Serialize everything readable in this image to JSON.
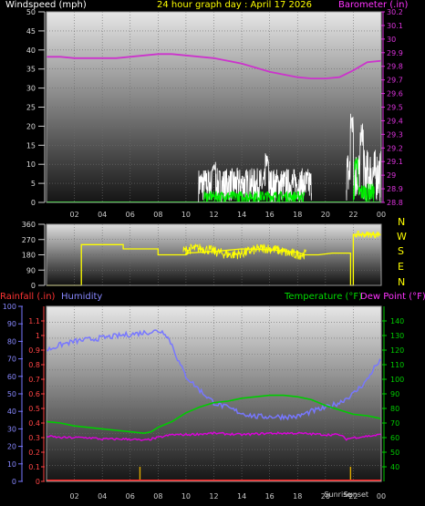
{
  "header": {
    "left": "Windspeed (mph)",
    "center": "24 hour graph day : April 17 2026",
    "right": "Barometer (.in)"
  },
  "compass": [
    "N",
    "W",
    "S",
    "E",
    "N"
  ],
  "bottom_header": {
    "rainfall": "Rainfall (.in)",
    "humidity": "Humidity",
    "temperature": "Temperature (°F)",
    "dewpoint": "Dew Point (°F)"
  },
  "x_ticks": [
    "02",
    "04",
    "06",
    "08",
    "10",
    "12",
    "14",
    "16",
    "18",
    "20",
    "22",
    "00"
  ],
  "sun_labels": [
    "Sunrise",
    "Sunset"
  ],
  "colors": {
    "wind": "#ffffff",
    "gust": "#00ee00",
    "barometer": "#cc33cc",
    "direction": "#ffff00",
    "humidity": "#7777ff",
    "temperature": "#00cc00",
    "dewpoint": "#dd00dd",
    "rain": "#ff2222",
    "sun": "#ddaa00",
    "header_left": "#ffffff",
    "header_center": "#ffff00",
    "header_right": "#ff33ff"
  },
  "chart_data": [
    {
      "type": "line",
      "name": "wind-barometer",
      "x_range": [
        0,
        24
      ],
      "ylim_left": [
        0,
        50
      ],
      "yticks_left": [
        0,
        5,
        10,
        15,
        20,
        25,
        30,
        35,
        40,
        45,
        50
      ],
      "ylim_right": [
        28.8,
        30.2
      ],
      "yticks_right": [
        "28.8",
        "28.9",
        "29",
        "29.1",
        "29.2",
        "29.3",
        "29.4",
        "29.5",
        "29.6",
        "29.7",
        "29.8",
        "29.9",
        "30",
        "30.1",
        "30.2"
      ],
      "grid": true,
      "barometer": [
        [
          0,
          29.87
        ],
        [
          1,
          29.87
        ],
        [
          2,
          29.86
        ],
        [
          3,
          29.86
        ],
        [
          4,
          29.86
        ],
        [
          5,
          29.86
        ],
        [
          6,
          29.87
        ],
        [
          7,
          29.88
        ],
        [
          8,
          29.89
        ],
        [
          9,
          29.89
        ],
        [
          10,
          29.88
        ],
        [
          11,
          29.87
        ],
        [
          12,
          29.86
        ],
        [
          13,
          29.84
        ],
        [
          14,
          29.82
        ],
        [
          15,
          29.79
        ],
        [
          16,
          29.76
        ],
        [
          17,
          29.74
        ],
        [
          18,
          29.72
        ],
        [
          19,
          29.71
        ],
        [
          20,
          29.71
        ],
        [
          21,
          29.72
        ],
        [
          22,
          29.77
        ],
        [
          23,
          29.83
        ],
        [
          24,
          29.84
        ]
      ],
      "wind_bursts": [
        [
          10.9,
          19.0,
          9
        ],
        [
          21.5,
          24.0,
          14
        ]
      ],
      "wind_peaks": [
        [
          12.0,
          11
        ],
        [
          15.8,
          13
        ],
        [
          21.9,
          25
        ],
        [
          22.6,
          21
        ]
      ],
      "gust_bursts": [
        [
          11.3,
          18.5,
          3
        ],
        [
          22.0,
          23.5,
          5
        ]
      ],
      "gust_peaks": [
        [
          22.2,
          12
        ]
      ]
    },
    {
      "type": "line",
      "name": "wind-direction",
      "x_range": [
        0,
        24
      ],
      "ylim": [
        0,
        360
      ],
      "yticks": [
        0,
        90,
        180,
        270,
        360
      ],
      "grid": true,
      "direction": [
        [
          0,
          0
        ],
        [
          2.5,
          0
        ],
        [
          2.5,
          240
        ],
        [
          5.5,
          240
        ],
        [
          5.5,
          215
        ],
        [
          8,
          215
        ],
        [
          8,
          180
        ],
        [
          10,
          180
        ],
        [
          10,
          190
        ],
        [
          12,
          200
        ],
        [
          14,
          215
        ],
        [
          16,
          210
        ],
        [
          18,
          195
        ],
        [
          18.5,
          180
        ],
        [
          19.5,
          180
        ],
        [
          20.5,
          190
        ],
        [
          21.8,
          190
        ],
        [
          21.8,
          0
        ],
        [
          22.0,
          0
        ],
        [
          22.0,
          300
        ],
        [
          24,
          300
        ]
      ],
      "noise_range": [
        9.8,
        18.6
      ]
    },
    {
      "type": "line",
      "name": "rain-humidity-temperature-dewpoint",
      "x_range": [
        0,
        24
      ],
      "rain_ylim": [
        0,
        1.2
      ],
      "rain_yticks": [
        "0",
        "0.1",
        "0.2",
        "0.3",
        "0.4",
        "0.5",
        "0.6",
        "0.7",
        "0.8",
        "0.9",
        "1",
        "1.1"
      ],
      "humidity_ylim": [
        0,
        100
      ],
      "humidity_yticks": [
        0,
        10,
        20,
        30,
        40,
        50,
        60,
        70,
        80,
        90,
        100
      ],
      "temp_ylim": [
        30,
        150
      ],
      "temp_yticks": [
        40,
        50,
        60,
        70,
        80,
        90,
        100,
        110,
        120,
        130,
        140
      ],
      "grid": true,
      "humidity": [
        [
          0,
          75
        ],
        [
          1,
          78
        ],
        [
          2,
          80
        ],
        [
          3,
          81
        ],
        [
          4,
          82
        ],
        [
          5,
          83
        ],
        [
          6,
          84
        ],
        [
          7,
          85
        ],
        [
          8,
          86
        ],
        [
          8.5,
          85
        ],
        [
          9,
          78
        ],
        [
          9.5,
          68
        ],
        [
          10,
          60
        ],
        [
          11,
          52
        ],
        [
          12,
          45
        ],
        [
          13,
          42
        ],
        [
          14,
          39
        ],
        [
          15,
          37
        ],
        [
          16,
          37
        ],
        [
          17,
          37
        ],
        [
          18,
          37
        ],
        [
          19,
          40
        ],
        [
          20,
          42
        ],
        [
          21,
          45
        ],
        [
          22,
          50
        ],
        [
          23,
          58
        ],
        [
          23.5,
          65
        ],
        [
          24,
          69
        ]
      ],
      "temperature": [
        [
          0,
          71
        ],
        [
          1,
          70
        ],
        [
          2,
          68
        ],
        [
          3,
          67
        ],
        [
          4,
          66
        ],
        [
          5,
          65
        ],
        [
          6,
          64
        ],
        [
          7,
          63
        ],
        [
          7.5,
          64
        ],
        [
          8,
          67
        ],
        [
          9,
          71
        ],
        [
          10,
          77
        ],
        [
          11,
          81
        ],
        [
          12,
          84
        ],
        [
          13,
          85
        ],
        [
          14,
          87
        ],
        [
          15,
          88
        ],
        [
          16,
          89
        ],
        [
          17,
          89
        ],
        [
          18,
          88
        ],
        [
          19,
          86
        ],
        [
          20,
          82
        ],
        [
          21,
          79
        ],
        [
          22,
          76
        ],
        [
          23,
          75
        ],
        [
          24,
          73
        ]
      ],
      "dewpoint": [
        [
          0,
          61
        ],
        [
          1,
          60
        ],
        [
          2,
          60
        ],
        [
          3,
          60
        ],
        [
          4,
          59
        ],
        [
          5,
          59
        ],
        [
          6,
          59
        ],
        [
          7,
          58
        ],
        [
          8,
          60
        ],
        [
          9,
          62
        ],
        [
          10,
          62
        ],
        [
          12,
          63
        ],
        [
          14,
          62
        ],
        [
          16,
          63
        ],
        [
          18,
          63
        ],
        [
          20,
          62
        ],
        [
          21,
          62
        ],
        [
          21.5,
          59
        ],
        [
          22,
          60
        ],
        [
          23,
          61
        ],
        [
          24,
          62
        ]
      ],
      "rain": 0,
      "sun_events": [
        6.7,
        21.8
      ]
    }
  ]
}
